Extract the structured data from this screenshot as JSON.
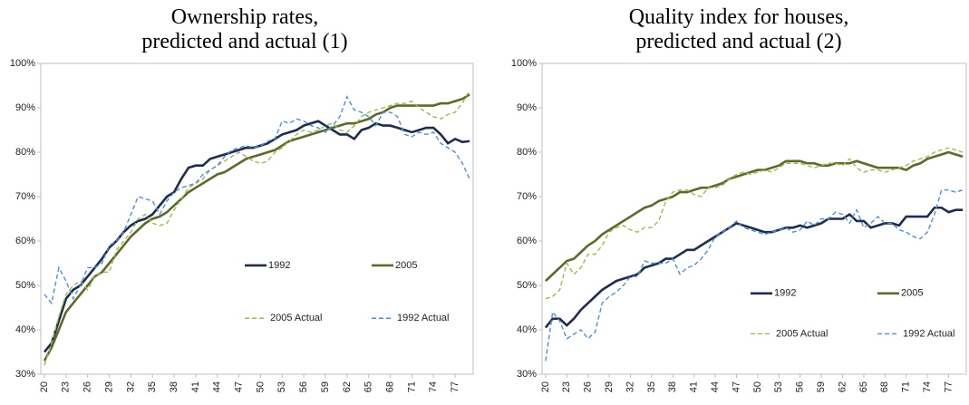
{
  "chart_data": [
    {
      "type": "line",
      "title": [
        "Ownership rates,",
        "predicted and actual (1)"
      ],
      "x": [
        20,
        21,
        22,
        23,
        24,
        25,
        26,
        27,
        28,
        29,
        30,
        31,
        32,
        33,
        34,
        35,
        36,
        37,
        38,
        39,
        40,
        41,
        42,
        43,
        44,
        45,
        46,
        47,
        48,
        49,
        50,
        51,
        52,
        53,
        54,
        55,
        56,
        57,
        58,
        59,
        60,
        61,
        62,
        63,
        64,
        65,
        66,
        67,
        68,
        69,
        70,
        71,
        72,
        73,
        74,
        75,
        76,
        77,
        78,
        79
      ],
      "xlim": [
        19.5,
        79.5
      ],
      "xticks": [
        20,
        23,
        26,
        29,
        32,
        35,
        38,
        41,
        44,
        47,
        50,
        53,
        56,
        59,
        62,
        65,
        68,
        71,
        74,
        77
      ],
      "ylim": [
        30,
        100
      ],
      "yticks": [
        {
          "value": 30,
          "label": "30%"
        },
        {
          "value": 40,
          "label": "40%"
        },
        {
          "value": 50,
          "label": "50%"
        },
        {
          "value": 60,
          "label": "60%"
        },
        {
          "value": 70,
          "label": "70%"
        },
        {
          "value": 80,
          "label": "80%"
        },
        {
          "value": 90,
          "label": "90%"
        },
        {
          "value": 100,
          "label": "100%"
        }
      ],
      "series": [
        {
          "name": "1992",
          "color": "#1f2d4d",
          "dash": false,
          "values": [
            35,
            37,
            42,
            47,
            49,
            50,
            52,
            54,
            56,
            58.5,
            60,
            62,
            63.5,
            64.5,
            65,
            66,
            68,
            70,
            71,
            74,
            76.5,
            77,
            77,
            78.5,
            79,
            79.5,
            80,
            80.5,
            81,
            81,
            81.5,
            82,
            83,
            84,
            84.5,
            85,
            86,
            86.5,
            87,
            86,
            85,
            84,
            84,
            83,
            85,
            85.5,
            86.5,
            86,
            86,
            85.5,
            85,
            84.5,
            85,
            85.5,
            85.5,
            84,
            82,
            83,
            82.3,
            82.5
          ]
        },
        {
          "name": "2005",
          "color": "#5a6b2a",
          "dash": false,
          "values": [
            33,
            36,
            40,
            44,
            46,
            48,
            50,
            52,
            53,
            55,
            57,
            59,
            61,
            62.5,
            64,
            65,
            65.5,
            66.5,
            68,
            69.5,
            71,
            72,
            73,
            74,
            75,
            75.5,
            76.5,
            77.5,
            78.5,
            79,
            79.5,
            80,
            80.5,
            81.5,
            82.5,
            83,
            83.5,
            84,
            84.5,
            85,
            85.5,
            86,
            86.5,
            86.5,
            87,
            87.5,
            88.5,
            89,
            90,
            90.5,
            90.5,
            90.5,
            90.5,
            90.5,
            90.5,
            91,
            91,
            91.5,
            92,
            93
          ]
        },
        {
          "name": "2005 Actual",
          "color": "#9bbb59",
          "dash": true,
          "values": [
            32,
            37,
            43,
            48,
            50,
            51,
            49,
            52,
            53,
            53,
            58,
            60,
            62,
            65,
            66,
            64,
            63.5,
            64,
            67,
            69.5,
            72,
            73,
            74,
            76,
            77,
            78,
            79,
            80,
            79,
            78,
            77.5,
            78,
            80,
            81,
            82.5,
            84,
            85,
            84.5,
            85,
            86,
            86.5,
            85,
            84.5,
            86,
            88,
            89,
            89.5,
            90,
            90.5,
            91,
            91,
            91.5,
            90,
            89,
            88,
            87.5,
            88.5,
            89,
            91,
            94
          ]
        },
        {
          "name": "1992 Actual",
          "color": "#4f8fd8",
          "dash": true,
          "values": [
            48,
            46,
            54,
            51,
            47,
            50,
            54,
            54,
            55,
            59,
            60,
            62,
            66,
            70,
            69.5,
            69,
            66,
            69,
            71,
            72,
            72.5,
            73,
            75,
            76,
            77,
            79,
            80.5,
            81,
            81.5,
            81,
            81.5,
            82.5,
            83,
            87,
            86.5,
            87.5,
            87,
            86,
            85.5,
            84.5,
            86,
            88,
            92.5,
            89.5,
            89,
            88,
            86,
            89,
            89,
            88,
            84,
            83.5,
            84.5,
            84,
            84.5,
            82,
            81,
            80,
            77.5,
            74
          ]
        }
      ]
    },
    {
      "type": "line",
      "title": [
        "Quality index for houses,",
        "predicted and actual (2)"
      ],
      "x": [
        20,
        21,
        22,
        23,
        24,
        25,
        26,
        27,
        28,
        29,
        30,
        31,
        32,
        33,
        34,
        35,
        36,
        37,
        38,
        39,
        40,
        41,
        42,
        43,
        44,
        45,
        46,
        47,
        48,
        49,
        50,
        51,
        52,
        53,
        54,
        55,
        56,
        57,
        58,
        59,
        60,
        61,
        62,
        63,
        64,
        65,
        66,
        67,
        68,
        69,
        70,
        71,
        72,
        73,
        74,
        75,
        76,
        77,
        78,
        79
      ],
      "xlim": [
        19.5,
        79.5
      ],
      "xticks": [
        20,
        23,
        26,
        29,
        32,
        35,
        38,
        41,
        44,
        47,
        50,
        53,
        56,
        59,
        62,
        65,
        68,
        71,
        74,
        77
      ],
      "ylim": [
        30,
        100
      ],
      "yticks": [
        {
          "value": 30,
          "label": "30%"
        },
        {
          "value": 40,
          "label": "40%"
        },
        {
          "value": 50,
          "label": "50%"
        },
        {
          "value": 60,
          "label": "60%"
        },
        {
          "value": 70,
          "label": "70%"
        },
        {
          "value": 80,
          "label": "80%"
        },
        {
          "value": 90,
          "label": "90%"
        },
        {
          "value": 100,
          "label": "100%"
        }
      ],
      "series": [
        {
          "name": "1992",
          "color": "#1f2d4d",
          "dash": false,
          "values": [
            40.5,
            42.5,
            42.5,
            41,
            42.5,
            44.5,
            46,
            47.5,
            49,
            50,
            51,
            51.5,
            52,
            52.5,
            54,
            54.5,
            55,
            56,
            56,
            57,
            58,
            58,
            59,
            60,
            61,
            62,
            63,
            64,
            63.5,
            63,
            62.5,
            62,
            62,
            62.5,
            63,
            63,
            63.5,
            63,
            63.5,
            64,
            65,
            65,
            65,
            66,
            64.5,
            64.5,
            63,
            63.5,
            64,
            64,
            63.5,
            65.5,
            65.5,
            65.5,
            65.5,
            67.5,
            67.5,
            66.5,
            67,
            67
          ]
        },
        {
          "name": "2005",
          "color": "#5a6b2a",
          "dash": false,
          "values": [
            51,
            52.5,
            54,
            55.5,
            56,
            57.5,
            59,
            60,
            61.5,
            62.5,
            63.5,
            64.5,
            65.5,
            66.5,
            67.5,
            68,
            69,
            69.5,
            70,
            71,
            71,
            71.5,
            72,
            72,
            72.5,
            73,
            74,
            74.5,
            75,
            75.5,
            76,
            76,
            76.5,
            77,
            78,
            78,
            78,
            77.5,
            77.5,
            77,
            77,
            77.5,
            77.5,
            77.5,
            78,
            77.5,
            77,
            76.5,
            76.5,
            76.5,
            76.5,
            76,
            77,
            77.5,
            78.5,
            79,
            79.5,
            80,
            79.5,
            79
          ]
        },
        {
          "name": "2005 Actual",
          "color": "#9bbb59",
          "dash": true,
          "values": [
            47,
            47.5,
            49,
            55,
            52.5,
            54,
            57,
            57,
            59,
            62,
            63,
            63.5,
            62.5,
            62,
            63,
            63,
            64.5,
            69,
            71,
            71.5,
            71.5,
            70.5,
            70,
            72,
            72,
            72.5,
            74,
            75,
            75.5,
            75,
            75.5,
            76,
            75.5,
            76.5,
            77.5,
            77.5,
            77.5,
            77,
            76.5,
            77,
            77.5,
            77.5,
            77,
            78.5,
            76.5,
            75.5,
            76,
            76,
            75.5,
            76,
            76.5,
            77,
            78,
            78.5,
            79,
            80,
            80.5,
            81,
            80.5,
            80
          ]
        },
        {
          "name": "1992 Actual",
          "color": "#4f8fd8",
          "dash": true,
          "values": [
            33,
            44,
            42,
            38,
            39,
            40,
            38,
            39.5,
            46,
            47.5,
            48.5,
            50,
            52,
            52,
            55.5,
            55,
            55,
            55,
            56,
            52.5,
            54,
            54.5,
            56,
            58,
            61,
            62,
            63,
            64.5,
            63,
            62.5,
            62,
            61.5,
            62,
            62.5,
            63,
            62,
            62.5,
            64.5,
            63.5,
            65,
            65,
            66.5,
            66,
            64,
            67,
            63,
            64,
            65.5,
            64,
            64,
            62.5,
            62,
            61,
            60.5,
            62,
            66,
            71.5,
            71.5,
            71,
            71.5
          ]
        }
      ]
    }
  ]
}
